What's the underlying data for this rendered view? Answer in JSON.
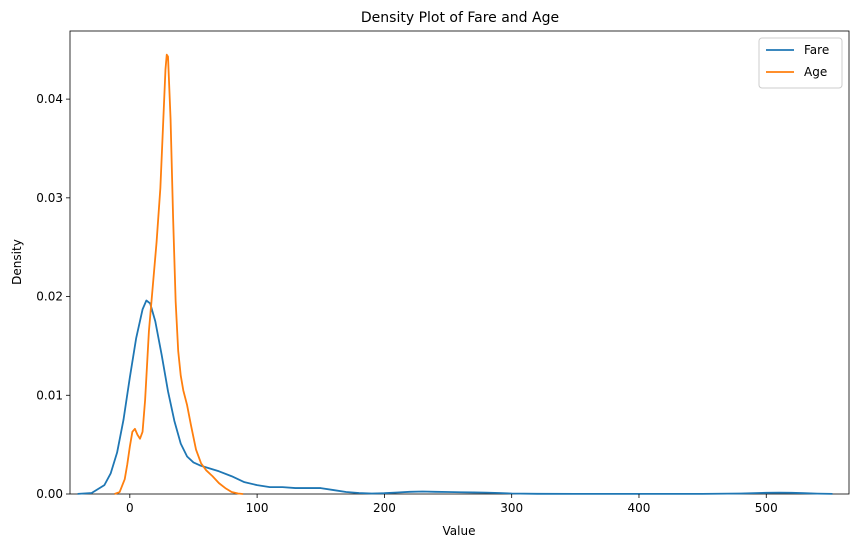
{
  "chart_data": {
    "type": "line",
    "title": "Density Plot of Fare and Age",
    "xlabel": "Value",
    "ylabel": "Density",
    "xlim": [
      -47,
      565
    ],
    "ylim": [
      0,
      0.0469
    ],
    "xticks": [
      0,
      100,
      200,
      300,
      400,
      500
    ],
    "xtick_labels": [
      "0",
      "100",
      "200",
      "300",
      "400",
      "500"
    ],
    "yticks": [
      0,
      0.01,
      0.02,
      0.03,
      0.04
    ],
    "ytick_labels": [
      "0.00",
      "0.01",
      "0.02",
      "0.03",
      "0.04"
    ],
    "grid": false,
    "legend_position": "top-right",
    "series": [
      {
        "name": "Fare",
        "color": "#1f77b4",
        "x": [
          -41,
          -30,
          -20,
          -15,
          -10,
          -5,
          0,
          5,
          10,
          13,
          16,
          20,
          25,
          30,
          35,
          40,
          45,
          50,
          55,
          60,
          70,
          80,
          90,
          100,
          110,
          120,
          130,
          140,
          150,
          160,
          170,
          180,
          190,
          200,
          210,
          220,
          230,
          240,
          250,
          260,
          270,
          280,
          290,
          300,
          320,
          350,
          400,
          450,
          480,
          500,
          510,
          520,
          530,
          540,
          552
        ],
        "y": [
          1e-05,
          0.0001,
          0.0009,
          0.0021,
          0.0042,
          0.0075,
          0.0118,
          0.0158,
          0.0187,
          0.0196,
          0.0193,
          0.0175,
          0.0141,
          0.0104,
          0.0074,
          0.0051,
          0.0038,
          0.0032,
          0.0029,
          0.0027,
          0.0023,
          0.0018,
          0.0012,
          0.0009,
          0.0007,
          0.0007,
          0.0006,
          0.0006,
          0.0006,
          0.0004,
          0.0002,
          0.0001,
          5e-05,
          8e-05,
          0.00015,
          0.00022,
          0.00025,
          0.00022,
          0.0002,
          0.00018,
          0.00016,
          0.00014,
          0.0001,
          5e-05,
          2e-05,
          1e-05,
          1e-05,
          1e-05,
          5e-05,
          0.00012,
          0.00014,
          0.00012,
          8e-05,
          4e-05,
          1e-05
        ]
      },
      {
        "name": "Age",
        "color": "#ff7f0e",
        "x": [
          -12,
          -8,
          -4,
          -2,
          0,
          2,
          4,
          6,
          8,
          10,
          12,
          15,
          18,
          21,
          24,
          26,
          28,
          29,
          30,
          32,
          34,
          36,
          38,
          40,
          42,
          45,
          48,
          52,
          56,
          60,
          65,
          70,
          75,
          80,
          85,
          89
        ],
        "y": [
          0.0,
          0.0002,
          0.0015,
          0.003,
          0.0048,
          0.0063,
          0.0066,
          0.006,
          0.0056,
          0.0063,
          0.0095,
          0.0165,
          0.021,
          0.0255,
          0.031,
          0.037,
          0.043,
          0.0445,
          0.0443,
          0.038,
          0.028,
          0.0195,
          0.0145,
          0.012,
          0.0105,
          0.009,
          0.007,
          0.0045,
          0.0031,
          0.0024,
          0.0018,
          0.0011,
          0.0006,
          0.0002,
          5e-05,
          0.0
        ]
      }
    ]
  }
}
